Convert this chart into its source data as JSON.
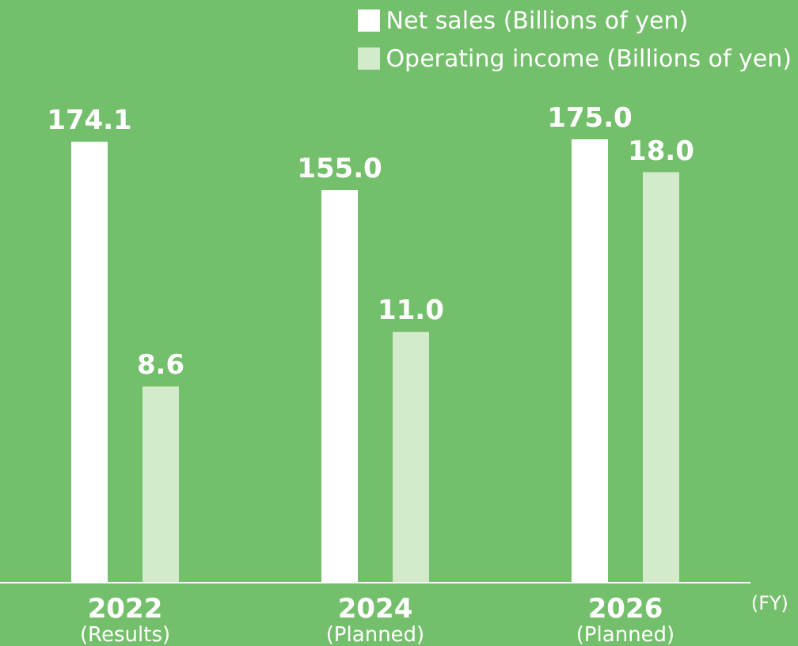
{
  "chart_data": {
    "type": "bar",
    "categories": [
      "2022$_{(Results)}$",
      "2024$_{(Planned)}$",
      "2026$_{(Planned)}$"
    ],
    "series": [
      {
        "name": "Net sales (Billions of yen)",
        "color": "#ffffff",
        "values": [
          174.1,
          155.0,
          175.0
        ],
        "value_labels": [
          "174.1",
          "155.0",
          "175.0"
        ]
      },
      {
        "name": "Operating income (Billions of yen)",
        "color": "#d4ebcb",
        "values": [
          8.6,
          11.0,
          18.0
        ],
        "value_labels": [
          "8.6",
          "11.0",
          "18.0"
        ],
        "axis": "y2"
      }
    ],
    "tick_labels": "x",
    "legend": "top right",
    "annotations": [
      "(FY)"
    ]
  }
}
